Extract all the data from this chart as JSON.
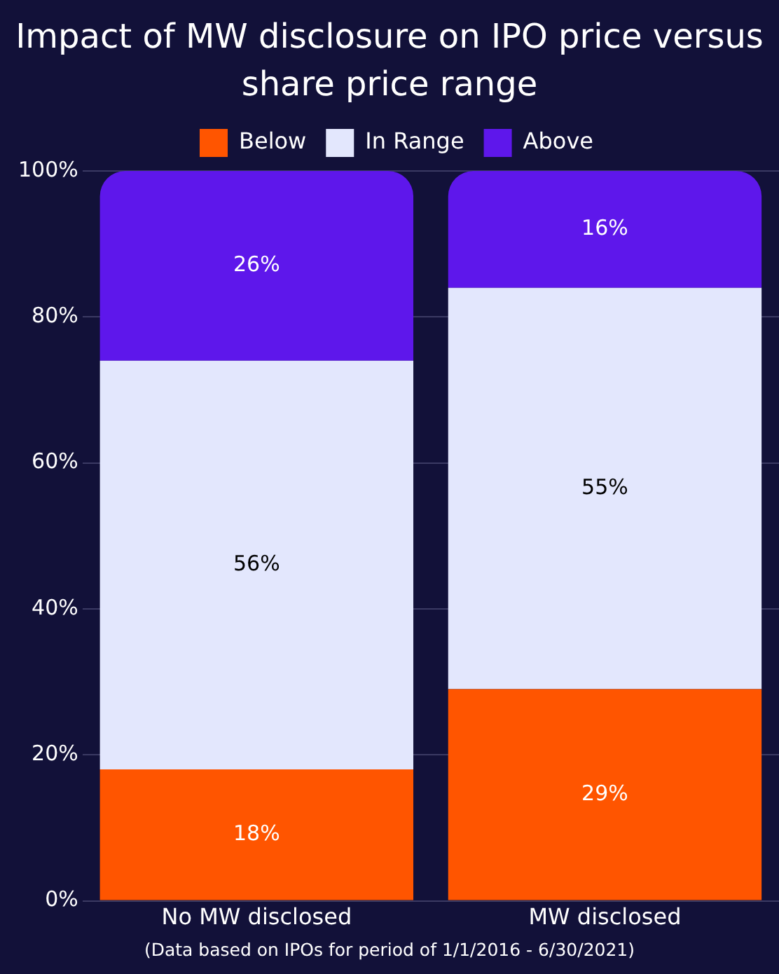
{
  "chart_data": {
    "type": "bar",
    "title": "Impact of MW disclosure on IPO price versus share price range",
    "categories": [
      "No MW disclosed",
      "MW disclosed"
    ],
    "series": [
      {
        "name": "Below",
        "color": "#ff5500",
        "values": [
          18,
          29
        ],
        "value_labels": [
          "18%",
          "29%"
        ]
      },
      {
        "name": "In Range",
        "color": "#e3e7fd",
        "values": [
          56,
          55
        ],
        "value_labels": [
          "56%",
          "55%"
        ]
      },
      {
        "name": "Above",
        "color": "#5e17eb",
        "values": [
          26,
          16
        ],
        "value_labels": [
          "26%",
          "16%"
        ]
      }
    ],
    "stacked": true,
    "ylim": [
      0,
      100
    ],
    "yticks": [
      {
        "value": 0,
        "label": "0%"
      },
      {
        "value": 20,
        "label": "20%"
      },
      {
        "value": 40,
        "label": "40%"
      },
      {
        "value": 60,
        "label": "60%"
      },
      {
        "value": 80,
        "label": "80%"
      },
      {
        "value": 100,
        "label": "100%"
      }
    ],
    "grid": "y",
    "legend": "top",
    "annotations": [
      "(Data based on IPOs for period of 1/1/2016 - 6/30/2021)"
    ]
  }
}
